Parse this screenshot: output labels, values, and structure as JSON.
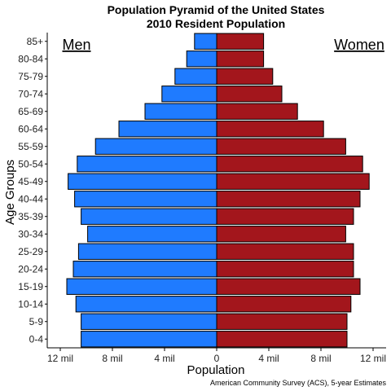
{
  "chart_data": {
    "type": "bar",
    "orientation": "horizontal",
    "title": "Population Pyramid of the United States",
    "subtitle": "2010 Resident Population",
    "xlabel": "Population",
    "ylabel": "Age Groups",
    "caption": "American Community Survey (ACS), 5-year Estimates",
    "left_label": "Men",
    "right_label": "Women",
    "categories": [
      "0-4",
      "5-9",
      "10-14",
      "15-19",
      "20-24",
      "25-29",
      "30-34",
      "35-39",
      "40-44",
      "45-49",
      "50-54",
      "55-59",
      "60-64",
      "65-69",
      "70-74",
      "75-79",
      "80-84",
      "85+"
    ],
    "series": [
      {
        "name": "Men",
        "color": "#1f7bff",
        "values": [
          10.4,
          10.4,
          10.8,
          11.5,
          11.0,
          10.6,
          9.9,
          10.4,
          10.9,
          11.4,
          10.7,
          9.3,
          7.5,
          5.5,
          4.2,
          3.2,
          2.3,
          1.7
        ]
      },
      {
        "name": "Women",
        "color": "#a3161c",
        "values": [
          10.0,
          10.0,
          10.3,
          11.0,
          10.5,
          10.5,
          9.9,
          10.5,
          11.0,
          11.7,
          11.2,
          9.9,
          8.2,
          6.2,
          5.0,
          4.3,
          3.6,
          3.6
        ]
      }
    ],
    "xlim": [
      -13,
      13
    ],
    "xticks": [
      -12,
      -8,
      -4,
      0,
      4,
      8,
      12
    ],
    "xtick_labels": [
      "12 mil",
      "8 mil",
      "4 mil",
      "0",
      "4 mil",
      "8 mil",
      "12 mil"
    ],
    "grid": false
  }
}
